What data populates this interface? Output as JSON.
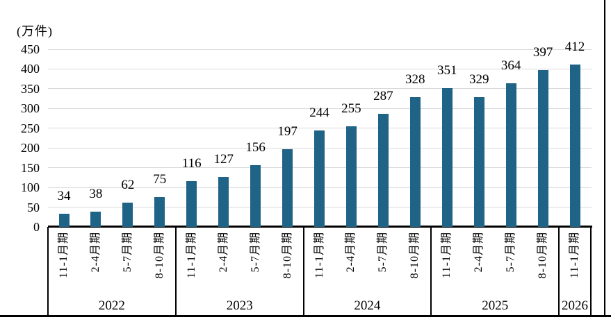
{
  "chart_data": {
    "type": "bar",
    "title": "",
    "unit_label": "(万件)",
    "xlabel": "",
    "ylabel": "",
    "ylim": [
      0,
      450
    ],
    "y_ticks": [
      0,
      50,
      100,
      150,
      200,
      250,
      300,
      350,
      400,
      450
    ],
    "grid": true,
    "legend": "none",
    "bar_color": "#1F6386",
    "gridline_color": "#D9D9D9",
    "axis_color": "#000000",
    "value_labels_shown": true,
    "groups": [
      {
        "year": "2022",
        "periods": [
          "11-1月期",
          "2-4月期",
          "5-7月期",
          "8-10月期"
        ],
        "values": [
          34,
          38,
          62,
          75
        ]
      },
      {
        "year": "2023",
        "periods": [
          "11-1月期",
          "2-4月期",
          "5-7月期",
          "8-10月期"
        ],
        "values": [
          116,
          127,
          156,
          197
        ]
      },
      {
        "year": "2024",
        "periods": [
          "11-1月期",
          "2-4月期",
          "5-7月期",
          "8-10月期"
        ],
        "values": [
          244,
          255,
          287,
          328
        ]
      },
      {
        "year": "2025",
        "periods": [
          "11-1月期",
          "2-4月期",
          "5-7月期",
          "8-10月期"
        ],
        "values": [
          351,
          329,
          364,
          397
        ]
      },
      {
        "year": "2026",
        "periods": [
          "11-1月期"
        ],
        "values": [
          412
        ]
      }
    ]
  }
}
